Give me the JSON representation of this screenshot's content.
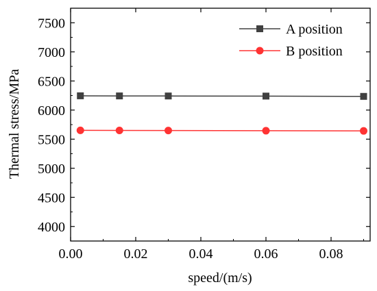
{
  "chart_data": {
    "type": "line",
    "xlabel": "speed/(m/s)",
    "ylabel": "Thermal stress/MPa",
    "xlim": [
      0.0,
      0.092
    ],
    "ylim": [
      3750,
      7750
    ],
    "xticks": [
      0.0,
      0.02,
      0.04,
      0.06,
      0.08
    ],
    "xtick_labels": [
      "0.00",
      "0.02",
      "0.04",
      "0.06",
      "0.08"
    ],
    "yticks": [
      4000,
      4500,
      5000,
      5500,
      6000,
      6500,
      7000,
      7500
    ],
    "ytick_labels": [
      "4000",
      "4500",
      "5000",
      "5500",
      "6000",
      "6500",
      "7000",
      "7500"
    ],
    "grid": false,
    "legend_position": "top-right",
    "x": [
      0.003,
      0.015,
      0.03,
      0.06,
      0.09
    ],
    "series": [
      {
        "name": "A position",
        "marker": "square",
        "color": "#404040",
        "values": [
          6245,
          6243,
          6242,
          6240,
          6235
        ]
      },
      {
        "name": "B position",
        "marker": "circle",
        "color": "#ff3333",
        "values": [
          5652,
          5650,
          5649,
          5645,
          5642
        ]
      }
    ]
  }
}
